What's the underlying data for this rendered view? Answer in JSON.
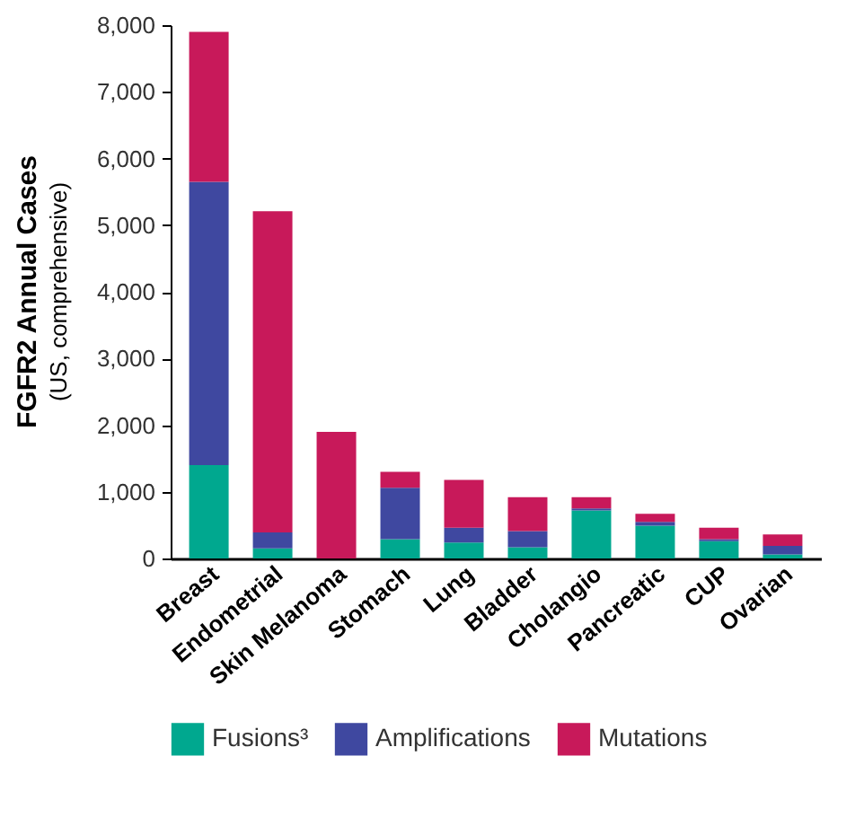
{
  "chart_data": {
    "type": "bar",
    "stacked": true,
    "ylabel": "FGFR2 Annual Cases",
    "annotations": [
      "(US, comprehensive)"
    ],
    "categories": [
      "Breast",
      "Endometrial",
      "Skin Melanoma",
      "Stomach",
      "Lung",
      "Bladder",
      "Cholangio",
      "Pancreatic",
      "CUP",
      "Ovarian"
    ],
    "series": [
      {
        "name": "Fusions³",
        "color": "#00a88f",
        "values": [
          1400,
          150,
          0,
          290,
          240,
          170,
          720,
          490,
          260,
          60
        ]
      },
      {
        "name": "Amplifications",
        "color": "#3f48a0",
        "values": [
          4250,
          240,
          0,
          770,
          220,
          240,
          30,
          60,
          30,
          130
        ]
      },
      {
        "name": "Mutations",
        "color": "#c8195a",
        "values": [
          2250,
          4820,
          1900,
          240,
          720,
          510,
          170,
          120,
          170,
          170
        ]
      }
    ],
    "ylim": [
      0,
      8000
    ],
    "yticks": [
      0,
      {
        "value": 1000,
        "label": "1,000"
      },
      {
        "value": 2000,
        "label": "2,000"
      },
      {
        "value": 3000,
        "label": "3,000"
      },
      {
        "value": 4000,
        "label": "4,000"
      },
      {
        "value": 5000,
        "label": "5,000"
      },
      {
        "value": 6000,
        "label": "6,000"
      },
      {
        "value": 7000,
        "label": "7,000"
      },
      {
        "value": 8000,
        "label": "8,000"
      }
    ],
    "grid": false,
    "legend": "bottom"
  }
}
